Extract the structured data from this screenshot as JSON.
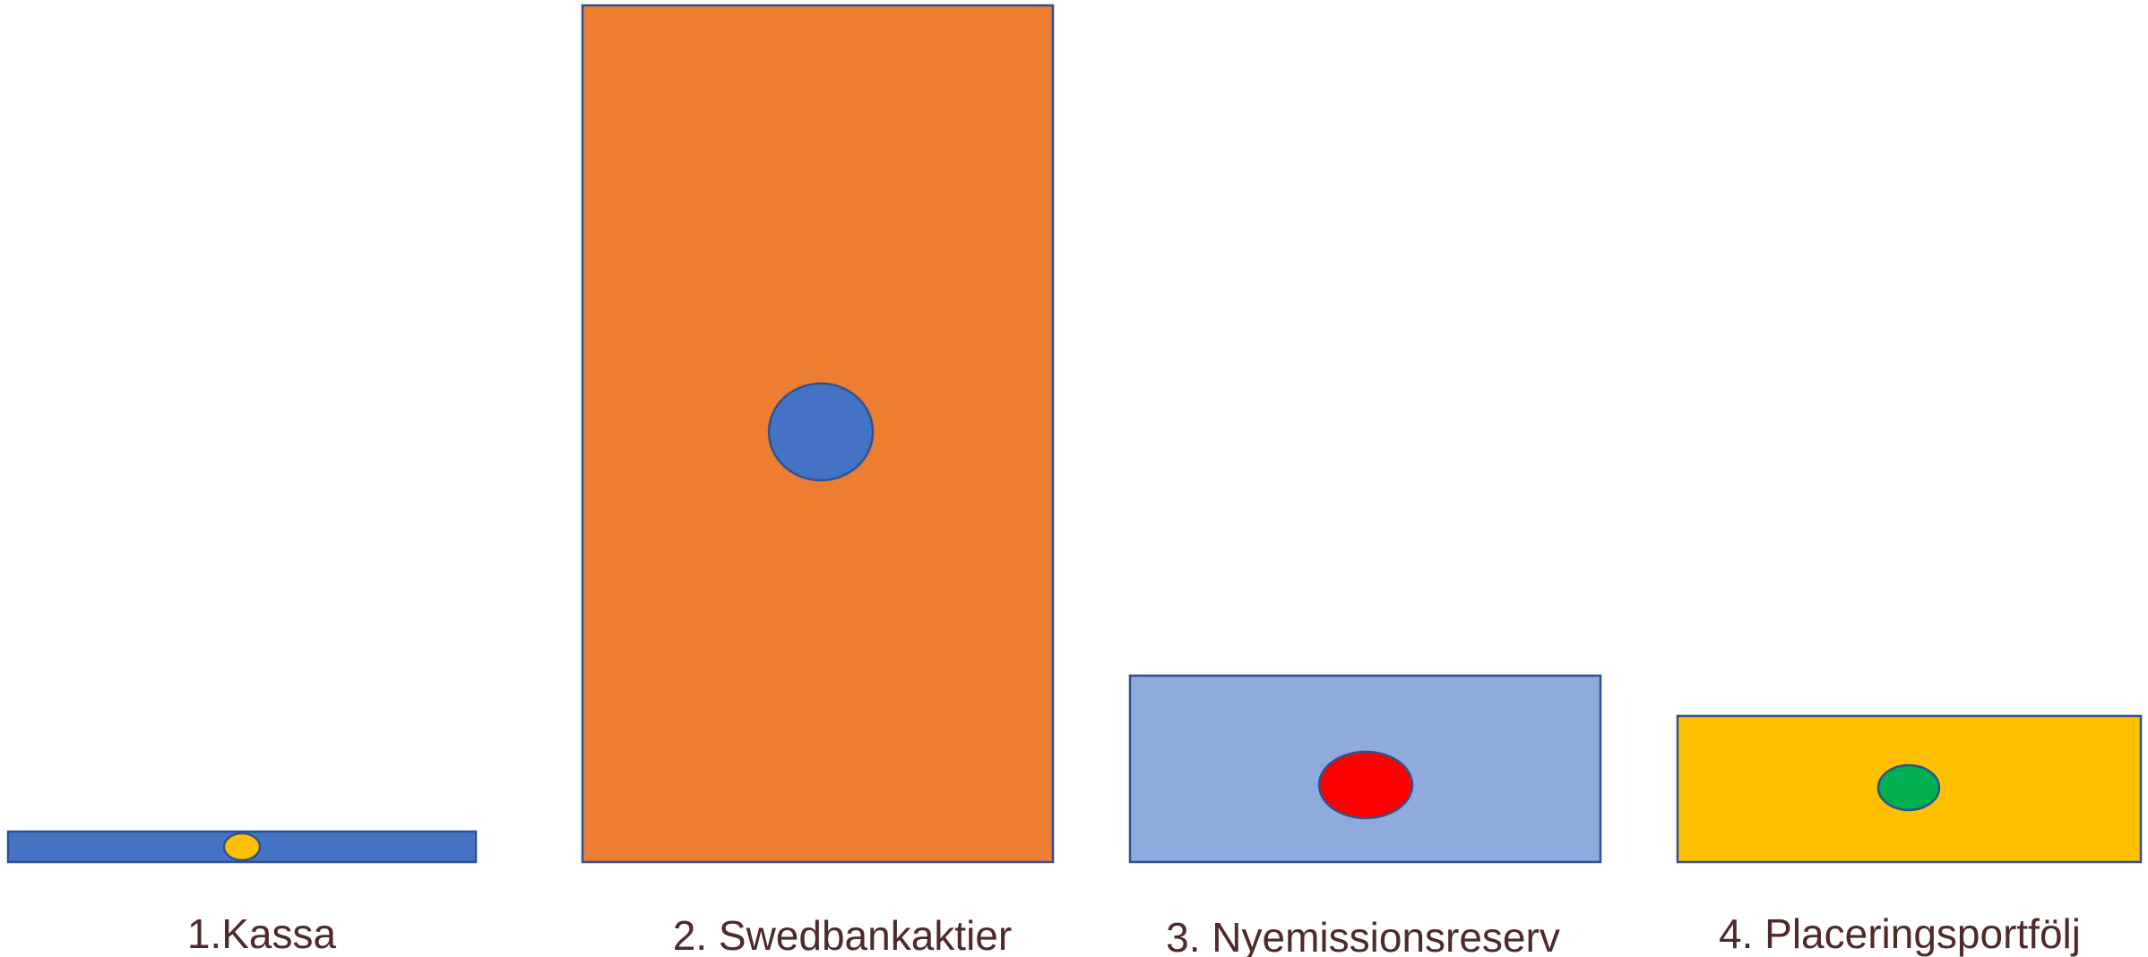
{
  "labels": [
    "1.Kassa",
    "2. Swedbankaktier",
    "3. Nyemissionsreserv",
    "4. Placeringsportfölj"
  ]
}
